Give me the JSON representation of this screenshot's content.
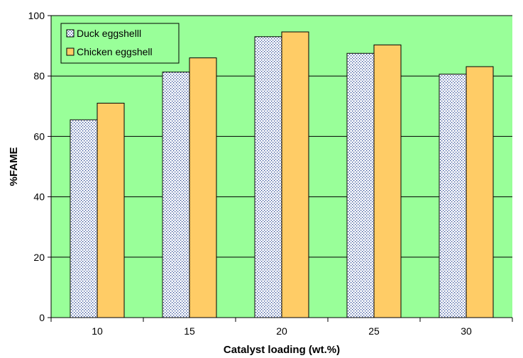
{
  "chart_data": {
    "type": "bar",
    "xlabel": "Catalyst loading (wt.%)",
    "ylabel": "%FAME",
    "categories": [
      "10",
      "15",
      "20",
      "25",
      "30"
    ],
    "ylim": [
      0,
      100
    ],
    "yticks": [
      "0",
      "20",
      "40",
      "60",
      "80",
      "100"
    ],
    "grid": true,
    "legend_position": "top-left",
    "plot_background": "#99ff99",
    "series": [
      {
        "name": "Duck eggshelll",
        "values": [
          65.5,
          81.3,
          93.0,
          87.5,
          80.6
        ],
        "color": "#ffffff",
        "dot_color": "#1f3f8f",
        "pattern": "dotted"
      },
      {
        "name": "Chicken eggshell",
        "values": [
          71.0,
          86.0,
          94.6,
          90.3,
          83.1
        ],
        "color": "#ffcc66"
      }
    ]
  }
}
